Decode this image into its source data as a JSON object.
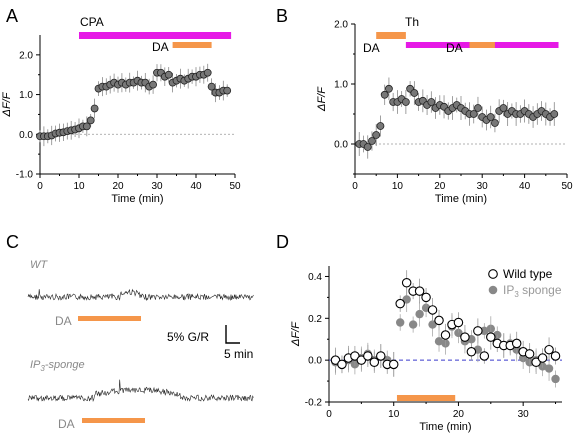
{
  "panels": {
    "a": {
      "label": "A"
    },
    "b": {
      "label": "B"
    },
    "c": {
      "label": "C"
    },
    "d": {
      "label": "D"
    }
  },
  "colors": {
    "magenta": "#e619e6",
    "orange": "#f5964a",
    "gray_marker": "#888888",
    "dash_blue": "#3a3acc",
    "light_gray_text": "#888888"
  },
  "panel_c": {
    "wt_label": "WT",
    "ip3_label": "IP",
    "ip3_sub": "3",
    "ip3_suffix": "-sponge",
    "da_label": "DA",
    "scale_y_label": "5% G/R",
    "scale_x_label": "5 min"
  },
  "chart_data": [
    {
      "id": "A",
      "type": "scatter",
      "xlabel": "Time (min)",
      "ylabel": "ΔF/F",
      "xlim": [
        0,
        50
      ],
      "ylim": [
        -1.0,
        2.5
      ],
      "xticks": [
        "0",
        "10",
        "20",
        "30",
        "40",
        "50"
      ],
      "yticks": [
        "-1.0",
        "0.0",
        "1.0",
        "2.0"
      ],
      "bars": [
        {
          "label": "CPA",
          "start": 10,
          "end": 49,
          "color": "#e619e6"
        },
        {
          "label": "DA",
          "start": 34,
          "end": 44,
          "color": "#f5964a"
        }
      ],
      "points": [
        [
          0,
          -0.05
        ],
        [
          1,
          -0.05
        ],
        [
          2,
          -0.05
        ],
        [
          3,
          -0.03
        ],
        [
          4,
          0.02
        ],
        [
          5,
          0.04
        ],
        [
          6,
          0.05
        ],
        [
          7,
          0.08
        ],
        [
          8,
          0.1
        ],
        [
          9,
          0.12
        ],
        [
          10,
          0.15
        ],
        [
          11,
          0.2
        ],
        [
          12,
          0.2
        ],
        [
          13,
          0.35
        ],
        [
          14,
          0.65
        ],
        [
          15,
          1.15
        ],
        [
          16,
          1.2
        ],
        [
          17,
          1.2
        ],
        [
          18,
          1.25
        ],
        [
          19,
          1.3
        ],
        [
          20,
          1.25
        ],
        [
          21,
          1.3
        ],
        [
          22,
          1.25
        ],
        [
          23,
          1.3
        ],
        [
          24,
          1.3
        ],
        [
          25,
          1.35
        ],
        [
          26,
          1.3
        ],
        [
          27,
          1.3
        ],
        [
          28,
          1.2
        ],
        [
          29,
          1.25
        ],
        [
          30,
          1.55
        ],
        [
          31,
          1.55
        ],
        [
          32,
          1.45
        ],
        [
          33,
          1.5
        ],
        [
          34,
          1.3
        ],
        [
          35,
          1.35
        ],
        [
          36,
          1.4
        ],
        [
          37,
          1.35
        ],
        [
          38,
          1.4
        ],
        [
          39,
          1.45
        ],
        [
          40,
          1.45
        ],
        [
          41,
          1.5
        ],
        [
          42,
          1.5
        ],
        [
          43,
          1.55
        ],
        [
          44,
          1.2
        ],
        [
          45,
          1.05
        ],
        [
          46,
          1.05
        ],
        [
          47,
          1.1
        ],
        [
          48,
          1.1
        ]
      ],
      "error": 0.25
    },
    {
      "id": "B",
      "type": "scatter",
      "xlabel": "Time (min)",
      "ylabel": "ΔF/F",
      "xlim": [
        0,
        50
      ],
      "ylim": [
        -0.5,
        2.0
      ],
      "xticks": [
        "0",
        "10",
        "20",
        "30",
        "40",
        "50"
      ],
      "yticks": [
        "0.0",
        "1.0",
        "2.0"
      ],
      "bars": [
        {
          "label": "DA",
          "start": 5,
          "end": 12,
          "color": "#f5964a"
        },
        {
          "label": "Th",
          "start": 12,
          "end": 48,
          "color": "#e619e6"
        },
        {
          "label": "DA",
          "start": 27,
          "end": 33,
          "color": "#f5964a"
        }
      ],
      "points": [
        [
          1,
          0.0
        ],
        [
          2,
          0.0
        ],
        [
          3,
          -0.05
        ],
        [
          4,
          0.05
        ],
        [
          5,
          0.15
        ],
        [
          6,
          0.3
        ],
        [
          7,
          0.82
        ],
        [
          8,
          0.92
        ],
        [
          9,
          0.7
        ],
        [
          10,
          0.7
        ],
        [
          11,
          0.75
        ],
        [
          12,
          0.7
        ],
        [
          13,
          0.92
        ],
        [
          14,
          0.85
        ],
        [
          15,
          0.7
        ],
        [
          16,
          0.72
        ],
        [
          17,
          0.65
        ],
        [
          18,
          0.7
        ],
        [
          19,
          0.6
        ],
        [
          20,
          0.65
        ],
        [
          21,
          0.62
        ],
        [
          22,
          0.55
        ],
        [
          23,
          0.6
        ],
        [
          24,
          0.65
        ],
        [
          25,
          0.6
        ],
        [
          26,
          0.55
        ],
        [
          27,
          0.5
        ],
        [
          28,
          0.5
        ],
        [
          29,
          0.6
        ],
        [
          30,
          0.45
        ],
        [
          31,
          0.4
        ],
        [
          32,
          0.45
        ],
        [
          33,
          0.35
        ],
        [
          34,
          0.55
        ],
        [
          35,
          0.6
        ],
        [
          36,
          0.5
        ],
        [
          37,
          0.55
        ],
        [
          38,
          0.5
        ],
        [
          39,
          0.5
        ],
        [
          40,
          0.55
        ],
        [
          41,
          0.5
        ],
        [
          42,
          0.45
        ],
        [
          43,
          0.5
        ],
        [
          44,
          0.55
        ],
        [
          45,
          0.5
        ],
        [
          46,
          0.45
        ],
        [
          47,
          0.5
        ]
      ],
      "error": 0.2
    },
    {
      "id": "D",
      "type": "scatter",
      "xlabel": "Time (min)",
      "ylabel": "ΔF/F",
      "xlim": [
        0,
        36
      ],
      "ylim": [
        -0.2,
        0.45
      ],
      "xticks": [
        "0",
        "10",
        "20",
        "30"
      ],
      "yticks": [
        "-0.2",
        "0.0",
        "0.2",
        "0.4"
      ],
      "bars": [
        {
          "label": "",
          "start": 10.5,
          "end": 19.5,
          "color": "#f5964a"
        }
      ],
      "series": [
        {
          "name": "Wild type",
          "style": "open",
          "points": [
            [
              1,
              0.0
            ],
            [
              2,
              -0.02
            ],
            [
              3,
              0.01
            ],
            [
              4,
              0.02
            ],
            [
              5,
              0.0
            ],
            [
              6,
              0.02
            ],
            [
              7,
              -0.01
            ],
            [
              8,
              0.02
            ],
            [
              9,
              -0.02
            ],
            [
              10,
              -0.02
            ],
            [
              11,
              0.27
            ],
            [
              12,
              0.37
            ],
            [
              13,
              0.33
            ],
            [
              14,
              0.33
            ],
            [
              15,
              0.3
            ],
            [
              16,
              0.24
            ],
            [
              17,
              0.19
            ],
            [
              18,
              0.12
            ],
            [
              19,
              0.17
            ],
            [
              20,
              0.18
            ],
            [
              21,
              0.11
            ],
            [
              22,
              0.04
            ],
            [
              23,
              0.14
            ],
            [
              24,
              0.02
            ],
            [
              25,
              0.11
            ],
            [
              26,
              0.08
            ],
            [
              27,
              0.07
            ],
            [
              28,
              0.07
            ],
            [
              29,
              0.08
            ],
            [
              30,
              0.04
            ],
            [
              31,
              0.03
            ],
            [
              32,
              -0.01
            ],
            [
              33,
              0.01
            ],
            [
              34,
              0.05
            ],
            [
              35,
              0.02
            ]
          ]
        },
        {
          "name": "IP3 sponge",
          "style": "filled",
          "points": [
            [
              1,
              -0.01
            ],
            [
              2,
              -0.02
            ],
            [
              3,
              0.0
            ],
            [
              4,
              -0.02
            ],
            [
              5,
              0.01
            ],
            [
              6,
              0.03
            ],
            [
              7,
              0.0
            ],
            [
              8,
              0.02
            ],
            [
              9,
              0.0
            ],
            [
              10,
              -0.02
            ],
            [
              11,
              0.18
            ],
            [
              12,
              0.29
            ],
            [
              13,
              0.17
            ],
            [
              14,
              0.22
            ],
            [
              15,
              0.25
            ],
            [
              16,
              0.17
            ],
            [
              17,
              0.09
            ],
            [
              18,
              0.08
            ],
            [
              19,
              0.16
            ],
            [
              20,
              0.13
            ],
            [
              21,
              0.09
            ],
            [
              22,
              0.1
            ],
            [
              23,
              0.05
            ],
            [
              24,
              0.14
            ],
            [
              25,
              0.15
            ],
            [
              26,
              0.12
            ],
            [
              27,
              0.07
            ],
            [
              28,
              0.08
            ],
            [
              29,
              0.05
            ],
            [
              30,
              0.01
            ],
            [
              31,
              -0.01
            ],
            [
              32,
              0.0
            ],
            [
              33,
              -0.03
            ],
            [
              34,
              -0.04
            ],
            [
              35,
              -0.09
            ]
          ]
        }
      ],
      "legend": [
        "Wild type",
        "IP3 sponge"
      ],
      "legend_position": "top-right",
      "error": 0.06
    }
  ]
}
